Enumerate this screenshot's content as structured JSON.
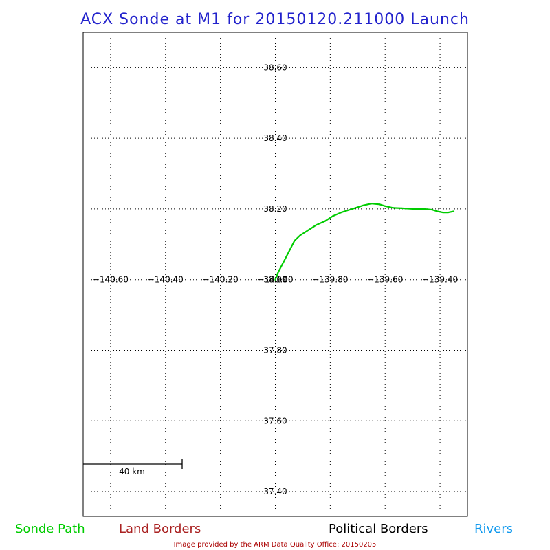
{
  "title": "ACX Sonde at M1 for 20150120.211000 Launch",
  "credit": "Image provided by the ARM Data Quality Office: 20150205",
  "colors": {
    "title": "#2222cc",
    "sonde_path": "#00cc00",
    "land_borders": "#aa2222",
    "political_borders": "#000000",
    "rivers": "#1199ee",
    "credit": "#aa0000"
  },
  "legend": {
    "sonde_path": "Sonde Path",
    "land_borders": "Land Borders",
    "political_borders": "Political Borders",
    "rivers": "Rivers"
  },
  "scale_bar": {
    "label": "40 km"
  },
  "map": {
    "lon_range": [
      -140.7,
      -139.3
    ],
    "lat_range": [
      37.33,
      38.7
    ],
    "lon_ticks": [
      {
        "value": -140.6,
        "label": "−140.60"
      },
      {
        "value": -140.4,
        "label": "−140.40"
      },
      {
        "value": -140.2,
        "label": "−140.20"
      },
      {
        "value": -140.0,
        "label": "−140.00"
      },
      {
        "value": -139.8,
        "label": "−139.80"
      },
      {
        "value": -139.6,
        "label": "−139.60"
      },
      {
        "value": -139.4,
        "label": "−139.40"
      }
    ],
    "lat_ticks": [
      {
        "value": 38.6,
        "label": "38.60"
      },
      {
        "value": 38.4,
        "label": "38.40"
      },
      {
        "value": 38.2,
        "label": "38.20"
      },
      {
        "value": 38.0,
        "label": "38.00"
      },
      {
        "value": 37.8,
        "label": "37.80"
      },
      {
        "value": 37.6,
        "label": "37.60"
      },
      {
        "value": 37.4,
        "label": "37.40"
      }
    ],
    "grid": true
  },
  "chart_data": {
    "type": "line",
    "series": [
      {
        "name": "Sonde Path",
        "lon": [
          -140.0,
          -139.99,
          -139.97,
          -139.95,
          -139.93,
          -139.91,
          -139.88,
          -139.85,
          -139.82,
          -139.79,
          -139.76,
          -139.72,
          -139.68,
          -139.65,
          -139.62,
          -139.6,
          -139.57,
          -139.54,
          -139.5,
          -139.46,
          -139.43,
          -139.41,
          -139.39,
          -139.37,
          -139.35
        ],
        "lat": [
          38.0,
          38.02,
          38.05,
          38.08,
          38.11,
          38.125,
          38.14,
          38.155,
          38.165,
          38.18,
          38.19,
          38.2,
          38.21,
          38.215,
          38.213,
          38.208,
          38.203,
          38.202,
          38.2,
          38.2,
          38.198,
          38.193,
          38.19,
          38.19,
          38.193
        ]
      }
    ]
  }
}
